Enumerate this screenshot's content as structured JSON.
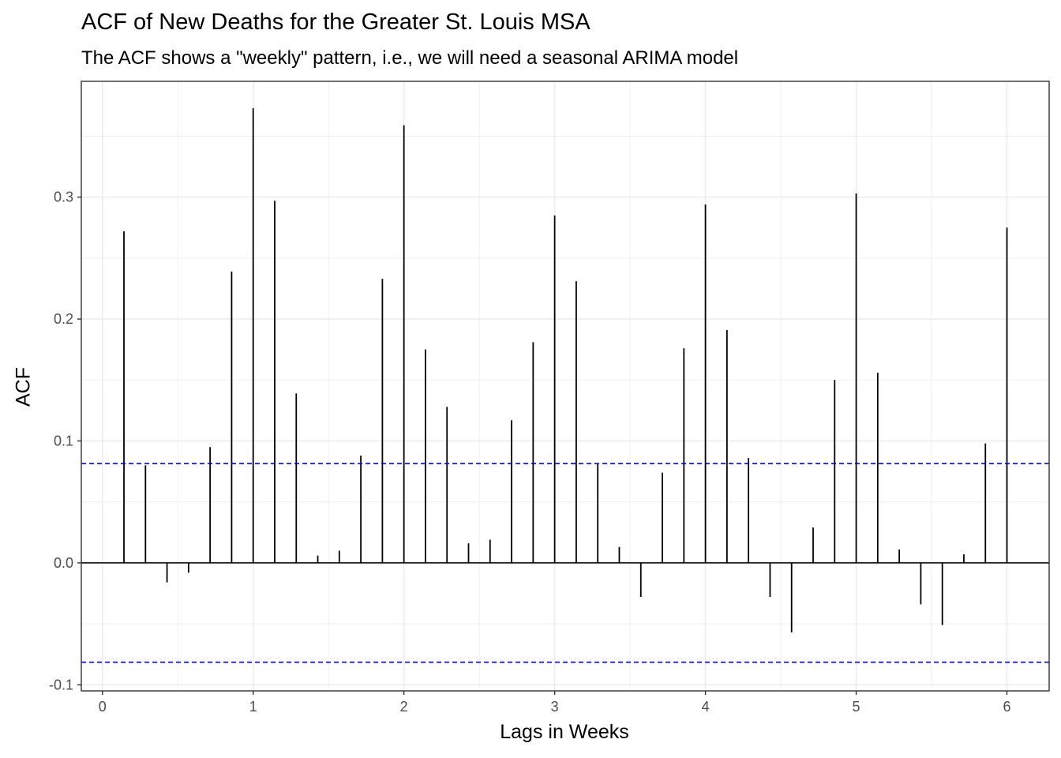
{
  "chart_data": {
    "type": "bar",
    "title": "ACF of New Deaths for the Greater St. Louis MSA",
    "subtitle": "The ACF shows a \"weekly\" pattern, i.e., we will need a seasonal ARIMA model",
    "xlabel": "Lags in Weeks",
    "ylabel": "ACF",
    "xlim": [
      -0.14,
      6.28
    ],
    "ylim": [
      -0.105,
      0.395
    ],
    "x_ticks": [
      0,
      1,
      2,
      3,
      4,
      5,
      6
    ],
    "x_tick_labels": [
      "0",
      "1",
      "2",
      "3",
      "4",
      "5",
      "6"
    ],
    "y_ticks": [
      -0.1,
      0.0,
      0.1,
      0.2,
      0.3
    ],
    "y_tick_labels": [
      "-0.1",
      "0.0",
      "0.1",
      "0.2",
      "0.3"
    ],
    "lag_step_weeks": 0.142857,
    "values": [
      0.272,
      0.08,
      -0.016,
      -0.008,
      0.095,
      0.239,
      0.373,
      0.297,
      0.139,
      0.006,
      0.01,
      0.088,
      0.233,
      0.359,
      0.175,
      0.128,
      0.016,
      0.019,
      0.117,
      0.181,
      0.285,
      0.231,
      0.081,
      0.013,
      -0.028,
      0.074,
      0.176,
      0.294,
      0.191,
      0.086,
      -0.028,
      -0.057,
      0.029,
      0.15,
      0.303,
      0.156,
      0.011,
      -0.034,
      -0.051,
      0.007,
      0.098,
      0.275
    ],
    "confidence_band": [
      0.0815,
      -0.0815
    ],
    "colors": {
      "bars": "#000000",
      "confidence_band": "#0000ff",
      "grid": "#ebebeb",
      "panel_border": "#333333"
    },
    "grid": true,
    "legend": "none"
  }
}
